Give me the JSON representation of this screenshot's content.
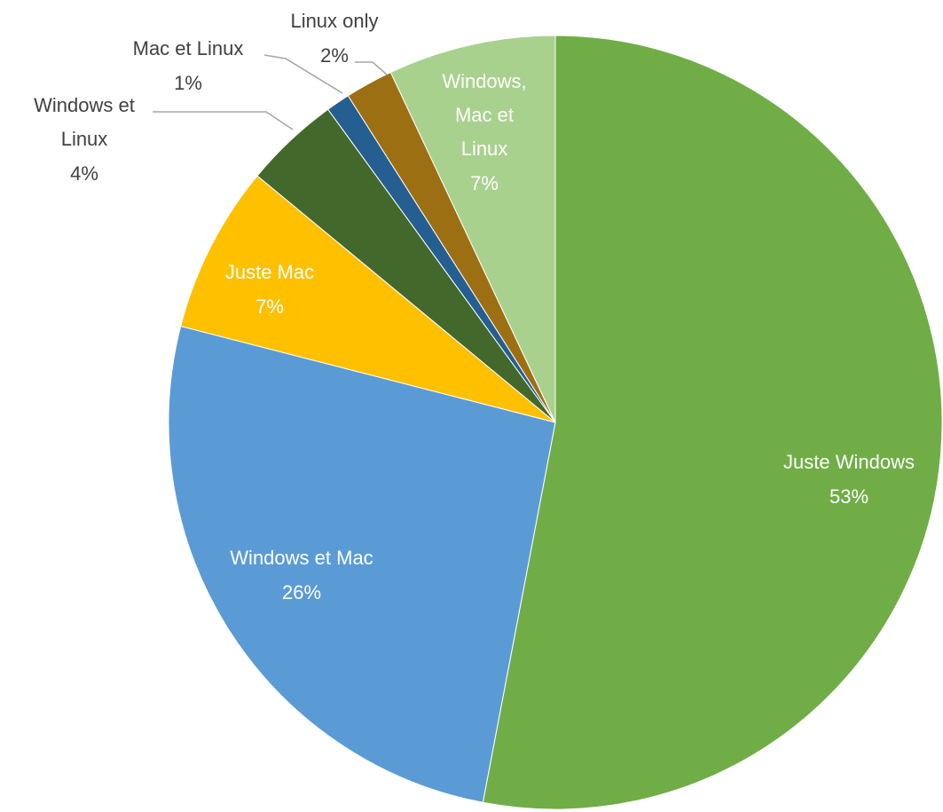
{
  "chart_data": {
    "type": "pie",
    "categories": [
      "Juste Windows",
      "Windows et Mac",
      "Juste Mac",
      "Windows et Linux",
      "Mac et Linux",
      "Linux only",
      "Windows, Mac et Linux"
    ],
    "values": [
      53,
      26,
      7,
      4,
      1,
      2,
      7
    ],
    "value_labels": [
      "53%",
      "26%",
      "7%",
      "4%",
      "1%",
      "2%",
      "7%"
    ],
    "colors": [
      "#70ad47",
      "#5b9bd5",
      "#ffc000",
      "#43682b",
      "#255e91",
      "#9c6f13",
      "#a9d18e"
    ]
  }
}
